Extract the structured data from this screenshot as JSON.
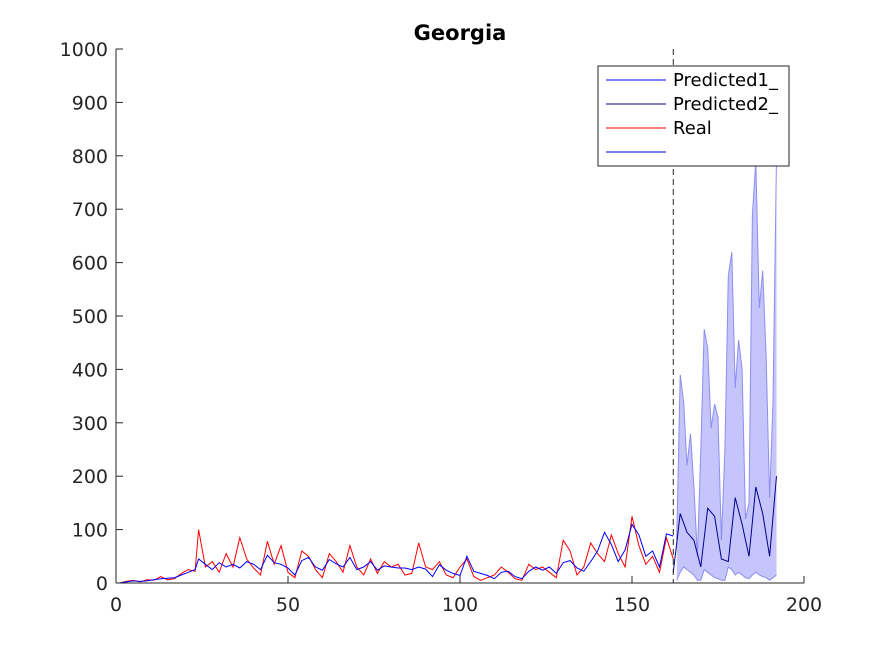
{
  "chart_data": {
    "type": "line",
    "title": "Georgia",
    "xlabel": "",
    "ylabel": "",
    "xlim": [
      0,
      200
    ],
    "ylim": [
      0,
      1000
    ],
    "x_ticks": [
      "0",
      "50",
      "100",
      "150",
      "200"
    ],
    "y_ticks": [
      "0",
      "100",
      "200",
      "300",
      "400",
      "500",
      "600",
      "700",
      "800",
      "900",
      "1000"
    ],
    "grid": false,
    "legend_position": "top-right",
    "forecast_start": 162,
    "colors": {
      "predicted1": "#0000ff",
      "predicted2": "#00008b",
      "real": "#ff0000",
      "band_fill": "#c5c5fb",
      "band_edge": "#8d8df0",
      "axis": "#262626",
      "divider": "#262626"
    },
    "series": [
      {
        "name": "Predicted1_",
        "x": [
          1,
          3,
          5,
          7,
          9,
          11,
          13,
          15,
          17,
          19,
          21,
          23,
          24,
          26,
          28,
          30,
          32,
          34,
          36,
          38,
          40,
          42,
          44,
          46,
          48,
          50,
          52,
          54,
          56,
          58,
          60,
          62,
          64,
          66,
          68,
          70,
          72,
          74,
          76,
          78,
          80,
          82,
          84,
          86,
          88,
          90,
          92,
          94,
          96,
          98,
          100,
          102,
          104,
          106,
          108,
          110,
          112,
          114,
          116,
          118,
          120,
          122,
          124,
          126,
          128,
          130,
          132,
          134,
          136,
          138,
          140,
          142,
          144,
          146,
          148,
          150,
          152,
          154,
          156,
          158,
          160,
          162
        ],
        "values": [
          0,
          2,
          4,
          3,
          4,
          6,
          8,
          9,
          10,
          15,
          20,
          25,
          45,
          35,
          25,
          38,
          30,
          35,
          28,
          40,
          35,
          25,
          52,
          38,
          35,
          28,
          15,
          42,
          48,
          30,
          24,
          44,
          36,
          30,
          48,
          25,
          30,
          40,
          24,
          32,
          30,
          28,
          28,
          25,
          30,
          26,
          12,
          34,
          24,
          18,
          14,
          50,
          22,
          18,
          14,
          8,
          20,
          22,
          12,
          8,
          22,
          30,
          24,
          30,
          18,
          38,
          42,
          28,
          22,
          40,
          60,
          95,
          72,
          40,
          62,
          110,
          90,
          50,
          60,
          30,
          92,
          88
        ]
      },
      {
        "name": "Predicted2_",
        "x": [
          162,
          164,
          166,
          168,
          170,
          172,
          174,
          176,
          178,
          180,
          182,
          184,
          186,
          188,
          190,
          192
        ],
        "values": [
          20,
          130,
          95,
          80,
          30,
          140,
          125,
          45,
          40,
          160,
          110,
          50,
          180,
          130,
          50,
          200
        ]
      },
      {
        "name": "Real",
        "x": [
          1,
          3,
          5,
          7,
          9,
          11,
          13,
          15,
          17,
          19,
          21,
          23,
          24,
          26,
          28,
          30,
          32,
          34,
          36,
          38,
          40,
          42,
          44,
          46,
          48,
          50,
          52,
          54,
          56,
          58,
          60,
          62,
          64,
          66,
          68,
          70,
          72,
          74,
          76,
          78,
          80,
          82,
          84,
          86,
          88,
          90,
          92,
          94,
          96,
          98,
          100,
          102,
          104,
          106,
          108,
          110,
          112,
          114,
          116,
          118,
          120,
          122,
          124,
          126,
          128,
          130,
          132,
          134,
          136,
          138,
          140,
          142,
          144,
          146,
          148,
          150,
          152,
          154,
          156,
          158,
          160,
          162
        ],
        "values": [
          0,
          3,
          5,
          2,
          6,
          5,
          12,
          6,
          8,
          18,
          25,
          22,
          100,
          30,
          40,
          20,
          55,
          30,
          85,
          45,
          28,
          15,
          78,
          35,
          70,
          20,
          10,
          60,
          50,
          25,
          10,
          55,
          40,
          20,
          70,
          30,
          15,
          45,
          18,
          40,
          30,
          35,
          15,
          18,
          75,
          30,
          25,
          40,
          15,
          10,
          30,
          45,
          12,
          5,
          10,
          15,
          30,
          20,
          8,
          5,
          35,
          25,
          30,
          20,
          10,
          80,
          60,
          15,
          30,
          75,
          55,
          40,
          90,
          55,
          30,
          125,
          70,
          35,
          50,
          20,
          85,
          45
        ]
      },
      {
        "name": "",
        "x": [
          163,
          164,
          165,
          166,
          167,
          168,
          169,
          170,
          171,
          172,
          173,
          174,
          175,
          176,
          177,
          178,
          179,
          180,
          181,
          182,
          183,
          184,
          185,
          186,
          187,
          188,
          189,
          190,
          191,
          192
        ],
        "upper": [
          80,
          390,
          340,
          220,
          280,
          180,
          50,
          250,
          475,
          440,
          290,
          335,
          310,
          80,
          250,
          575,
          620,
          365,
          455,
          400,
          120,
          150,
          690,
          790,
          515,
          585,
          420,
          160,
          340,
          800
        ],
        "lower": [
          5,
          20,
          30,
          25,
          20,
          15,
          5,
          5,
          25,
          20,
          15,
          10,
          8,
          5,
          5,
          30,
          25,
          15,
          20,
          15,
          10,
          8,
          15,
          20,
          15,
          12,
          10,
          5,
          10,
          15
        ]
      }
    ]
  }
}
